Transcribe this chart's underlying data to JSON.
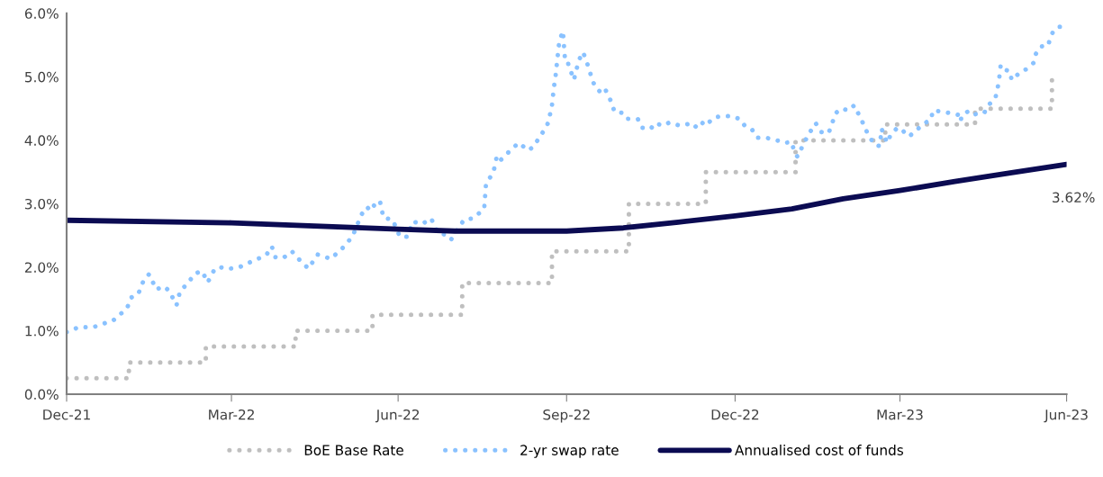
{
  "chart_data": {
    "type": "line",
    "xlim": [
      "2021-12-31",
      "2023-06-30"
    ],
    "xticks": [
      {
        "value": "2021-12-31",
        "label": "Dec-21"
      },
      {
        "value": "2022-03-31",
        "label": "Mar-22"
      },
      {
        "value": "2022-06-30",
        "label": "Jun-22"
      },
      {
        "value": "2022-09-30",
        "label": "Sep-22"
      },
      {
        "value": "2022-12-31",
        "label": "Dec-22"
      },
      {
        "value": "2023-03-31",
        "label": "Mar-23"
      },
      {
        "value": "2023-06-30",
        "label": "Jun-23"
      }
    ],
    "ylim": [
      0,
      6
    ],
    "yticks": [
      {
        "value": 0,
        "label": "0.0%"
      },
      {
        "value": 1,
        "label": "1.0%"
      },
      {
        "value": 2,
        "label": "2.0%"
      },
      {
        "value": 3,
        "label": "3.0%"
      },
      {
        "value": 4,
        "label": "4.0%"
      },
      {
        "value": 5,
        "label": "5.0%"
      },
      {
        "value": 6,
        "label": "6.0%"
      }
    ],
    "grid": false,
    "legend": "bottom",
    "marker": "none",
    "series": [
      {
        "name": "BoE Base Rate",
        "type": "step",
        "line_style": "dotted",
        "color": "#bfbfbf",
        "x": [
          "2021-12-31",
          "2022-02-03",
          "2022-03-17",
          "2022-05-05",
          "2022-06-16",
          "2022-08-04",
          "2022-09-22",
          "2022-11-03",
          "2022-12-15",
          "2023-02-02",
          "2023-03-23",
          "2023-05-11",
          "2023-06-22"
        ],
        "values": [
          0.25,
          0.5,
          0.75,
          1.0,
          1.25,
          1.75,
          2.25,
          3.0,
          3.5,
          4.0,
          4.25,
          4.5,
          5.0
        ]
      },
      {
        "name": "2-yr swap rate",
        "type": "line",
        "line_style": "dotted",
        "color": "#8ac2ff",
        "x": [
          "2021-12-31",
          "2022-01-07",
          "2022-01-14",
          "2022-01-21",
          "2022-01-25",
          "2022-01-28",
          "2022-02-02",
          "2022-02-04",
          "2022-02-08",
          "2022-02-11",
          "2022-02-14",
          "2022-02-18",
          "2022-02-22",
          "2022-02-25",
          "2022-03-01",
          "2022-03-03",
          "2022-03-07",
          "2022-03-11",
          "2022-03-15",
          "2022-03-18",
          "2022-03-22",
          "2022-03-25",
          "2022-03-29",
          "2022-04-05",
          "2022-04-11",
          "2022-04-19",
          "2022-04-22",
          "2022-04-24",
          "2022-04-28",
          "2022-05-03",
          "2022-05-06",
          "2022-05-12",
          "2022-05-17",
          "2022-05-20",
          "2022-05-24",
          "2022-05-30",
          "2022-06-05",
          "2022-06-08",
          "2022-06-10",
          "2022-06-13",
          "2022-06-15",
          "2022-06-17",
          "2022-06-20",
          "2022-06-22",
          "2022-06-27",
          "2022-07-01",
          "2022-07-05",
          "2022-07-08",
          "2022-07-13",
          "2022-07-18",
          "2022-07-22",
          "2022-07-27",
          "2022-07-29",
          "2022-08-05",
          "2022-08-10",
          "2022-08-16",
          "2022-08-17",
          "2022-08-21",
          "2022-08-23",
          "2022-08-25",
          "2022-09-01",
          "2022-09-04",
          "2022-09-09",
          "2022-09-12",
          "2022-09-15",
          "2022-09-18",
          "2022-09-20",
          "2022-09-22",
          "2022-09-23",
          "2022-09-24",
          "2022-09-25",
          "2022-09-26",
          "2022-09-28",
          "2022-09-29",
          "2022-09-30",
          "2022-10-01",
          "2022-10-04",
          "2022-10-05",
          "2022-10-07",
          "2022-10-09",
          "2022-10-12",
          "2022-10-14",
          "2022-10-16",
          "2022-10-19",
          "2022-10-21",
          "2022-10-23",
          "2022-10-25",
          "2022-10-26",
          "2022-10-31",
          "2022-11-02",
          "2022-11-08",
          "2022-11-10",
          "2022-11-15",
          "2022-11-17",
          "2022-11-22",
          "2022-11-25",
          "2022-12-01",
          "2022-12-06",
          "2022-12-09",
          "2022-12-12",
          "2022-12-15",
          "2022-12-19",
          "2022-12-23",
          "2022-12-29",
          "2023-01-03",
          "2023-01-05",
          "2023-01-09",
          "2023-01-12",
          "2023-01-17",
          "2023-01-24",
          "2023-01-26",
          "2023-01-31",
          "2023-02-01",
          "2023-02-03",
          "2023-02-05",
          "2023-02-09",
          "2023-02-13",
          "2023-02-16",
          "2023-02-20",
          "2023-02-24",
          "2023-02-27",
          "2023-03-03",
          "2023-03-06",
          "2023-03-09",
          "2023-03-11",
          "2023-03-13",
          "2023-03-17",
          "2023-03-20",
          "2023-03-21",
          "2023-03-24",
          "2023-03-26",
          "2023-03-29",
          "2023-03-31",
          "2023-04-03",
          "2023-04-05",
          "2023-04-09",
          "2023-04-13",
          "2023-04-17",
          "2023-04-18",
          "2023-04-24",
          "2023-04-27",
          "2023-05-02",
          "2023-05-03",
          "2023-05-04",
          "2023-05-08",
          "2023-05-11",
          "2023-05-16",
          "2023-05-18",
          "2023-05-22",
          "2023-05-23",
          "2023-05-24",
          "2023-05-25",
          "2023-05-26",
          "2023-05-30",
          "2023-05-31",
          "2023-06-05",
          "2023-06-08",
          "2023-06-12",
          "2023-06-13",
          "2023-06-14",
          "2023-06-16",
          "2023-06-20",
          "2023-06-21",
          "2023-06-23",
          "2023-06-26",
          "2023-06-28"
        ],
        "values": [
          0.98,
          1.06,
          1.05,
          1.12,
          1.15,
          1.23,
          1.35,
          1.52,
          1.57,
          1.79,
          1.89,
          1.65,
          1.7,
          1.63,
          1.4,
          1.63,
          1.74,
          1.9,
          1.94,
          1.76,
          1.98,
          2.0,
          1.97,
          2.01,
          2.09,
          2.19,
          2.33,
          2.16,
          2.14,
          2.25,
          2.15,
          1.98,
          2.2,
          2.18,
          2.13,
          2.28,
          2.48,
          2.69,
          2.83,
          2.95,
          2.89,
          2.98,
          3.05,
          2.78,
          2.75,
          2.48,
          2.48,
          2.72,
          2.68,
          2.77,
          2.53,
          2.51,
          2.44,
          2.75,
          2.77,
          2.92,
          3.32,
          3.49,
          3.76,
          3.69,
          3.89,
          3.96,
          3.84,
          3.9,
          4.04,
          4.17,
          4.28,
          4.55,
          4.82,
          5.02,
          5.29,
          5.56,
          5.72,
          5.32,
          5.32,
          5.19,
          4.95,
          5.08,
          5.28,
          5.39,
          5.15,
          4.95,
          4.82,
          4.75,
          4.81,
          4.69,
          4.57,
          4.45,
          4.43,
          4.34,
          4.33,
          4.2,
          4.18,
          4.27,
          4.23,
          4.28,
          4.23,
          4.26,
          4.2,
          4.3,
          4.23,
          4.35,
          4.38,
          4.38,
          4.33,
          4.24,
          4.18,
          4.04,
          4.04,
          3.99,
          3.96,
          3.97,
          3.85,
          3.74,
          3.86,
          4.09,
          4.27,
          4.13,
          4.11,
          4.43,
          4.5,
          4.47,
          4.55,
          4.38,
          4.26,
          4.13,
          3.93,
          3.91,
          4.18,
          3.96,
          4.09,
          4.18,
          4.2,
          4.11,
          4.06,
          4.16,
          4.26,
          4.33,
          4.47,
          4.45,
          4.43,
          4.4,
          4.3,
          4.4,
          4.47,
          4.41,
          4.43,
          4.55,
          4.65,
          4.78,
          4.92,
          5.18,
          5.12,
          5.09,
          4.95,
          5.08,
          5.12,
          5.22,
          5.35,
          5.4,
          5.48,
          5.49,
          5.62,
          5.73,
          5.79,
          5.79
        ]
      },
      {
        "name": "Annualised cost of funds",
        "type": "line",
        "line_style": "solid",
        "color": "#0b0b52",
        "x": [
          "2021-12-31",
          "2022-03-31",
          "2022-06-30",
          "2022-07-31",
          "2022-09-30",
          "2022-10-31",
          "2022-11-30",
          "2022-12-31",
          "2023-01-31",
          "2023-02-28",
          "2023-03-31",
          "2023-04-30",
          "2023-05-31",
          "2023-06-30"
        ],
        "values": [
          2.74,
          2.7,
          2.6,
          2.57,
          2.57,
          2.62,
          2.71,
          2.81,
          2.92,
          3.08,
          3.21,
          3.35,
          3.49,
          3.62
        ]
      }
    ],
    "annotations": [
      {
        "text": "3.62%",
        "x": "2023-06-30",
        "y": 3.62
      }
    ]
  }
}
